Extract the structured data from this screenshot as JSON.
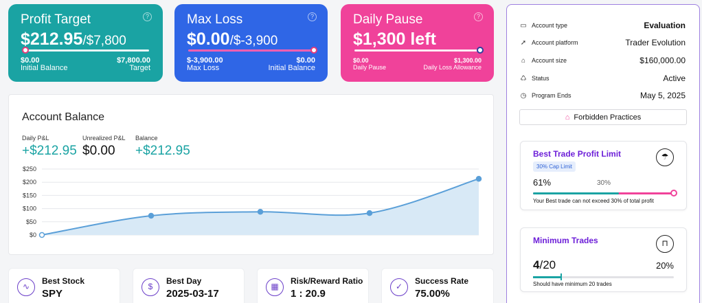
{
  "profit_target": {
    "title": "Profit Target",
    "amount": "$212.95",
    "target_inline": "/$7,800",
    "left_value": "$0.00",
    "left_label": "Initial Balance",
    "right_value": "$7,800.00",
    "right_label": "Target",
    "progress": 0.027
  },
  "max_loss": {
    "title": "Max Loss",
    "amount": "$0.00",
    "limit_inline": "/$-3,900",
    "left_value": "$-3,900.00",
    "left_label": "Max Loss",
    "right_value": "$0.00",
    "right_label": "Initial Balance",
    "progress": 1.0
  },
  "daily_pause": {
    "title": "Daily Pause",
    "amount": "$1,300 left",
    "left_value": "$0.00",
    "left_label": "Daily Pause",
    "right_value": "$1,300.00",
    "right_label": "Daily Loss Allowance",
    "progress": 1.0
  },
  "help_glyph": "?",
  "account_balance": {
    "heading": "Account Balance",
    "metrics": [
      {
        "label": "Daily P&L",
        "value": "+$212.95"
      },
      {
        "label": "Unrealized P&L",
        "value": "$0.00"
      },
      {
        "label": "Balance",
        "value": "+$212.95"
      }
    ]
  },
  "chart_data": {
    "type": "area",
    "x": [
      0,
      1,
      2,
      3,
      4
    ],
    "values": [
      0,
      73,
      88,
      83,
      212.95
    ],
    "ylim": [
      0,
      250
    ],
    "yticks": [
      "$0",
      "$50",
      "$100",
      "$150",
      "$200",
      "$250"
    ],
    "ytick_values": [
      0,
      50,
      100,
      150,
      200,
      250
    ],
    "grid": true,
    "line_color": "#5a9fd8",
    "fill_color": "#d8e9f6"
  },
  "stats": [
    {
      "label": "Best Stock",
      "value": "SPY",
      "icon": "chart-icon"
    },
    {
      "label": "Best Day",
      "value": "2025-03-17",
      "icon": "dollar-icon"
    },
    {
      "label": "Risk/Reward Ratio",
      "value": "1 : 20.9",
      "icon": "calculator-icon"
    },
    {
      "label": "Success Rate",
      "value": "75.00%",
      "icon": "check-icon"
    }
  ],
  "account_info": [
    {
      "key": "Account type",
      "value": "Evaluation",
      "icon": "id-card-icon"
    },
    {
      "key": "Account platform",
      "value": "Trader Evolution",
      "icon": "rocket-icon"
    },
    {
      "key": "Account size",
      "value": "$160,000.00",
      "icon": "bank-icon"
    },
    {
      "key": "Status",
      "value": "Active",
      "icon": "recycle-icon"
    },
    {
      "key": "Program Ends",
      "value": "May 5, 2025",
      "icon": "clock-icon"
    }
  ],
  "forbidden_label": "Forbidden Practices",
  "best_trade": {
    "title": "Best Trade Profit Limit",
    "badge": "30% Cap Limit",
    "current": "61%",
    "cap": "30%",
    "progress": 0.61,
    "note": "Your Best trade can not exceed 30% of total profit"
  },
  "min_trades": {
    "title": "Minimum Trades",
    "done": "4",
    "total": "/20",
    "percent": "20%",
    "progress": 0.2,
    "note": "Should have minimum 20 trades"
  },
  "colors": {
    "teal": "#1aa3a3",
    "blue": "#2f66e6",
    "pink": "#f0429a",
    "purple": "#6d1fd8"
  }
}
